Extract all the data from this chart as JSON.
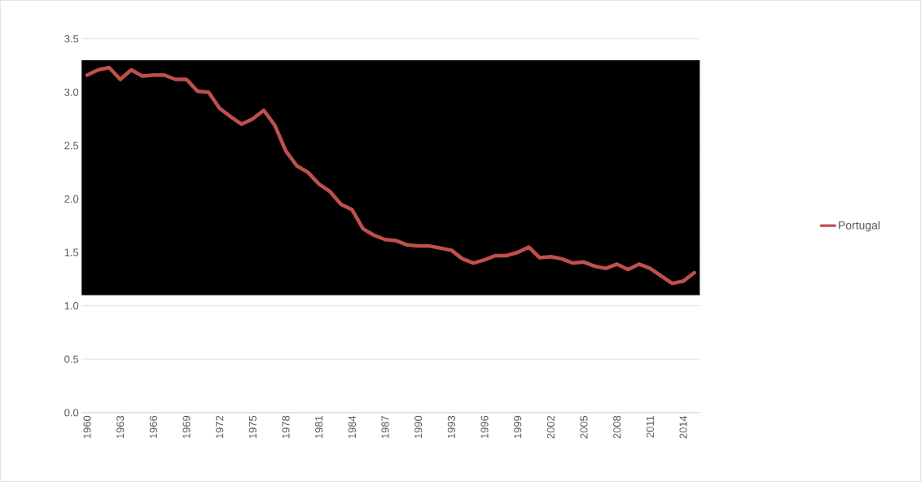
{
  "chart_data": {
    "type": "line",
    "categories": [
      "1960",
      null,
      null,
      "1963",
      null,
      null,
      "1966",
      null,
      null,
      "1969",
      null,
      null,
      "1972",
      null,
      null,
      "1975",
      null,
      null,
      "1978",
      null,
      null,
      "1981",
      null,
      null,
      "1984",
      null,
      null,
      "1987",
      null,
      null,
      "1990",
      null,
      null,
      "1993",
      null,
      null,
      "1996",
      null,
      null,
      "1999",
      null,
      null,
      "2002",
      null,
      null,
      "2005",
      null,
      null,
      "2008",
      null,
      null,
      "2011",
      null,
      null,
      "2014",
      null
    ],
    "series": [
      {
        "name": "Portugal",
        "color": "#c0504d",
        "values": [
          3.16,
          3.21,
          3.23,
          3.12,
          3.21,
          3.15,
          3.16,
          3.16,
          3.12,
          3.12,
          3.01,
          3.0,
          2.85,
          2.77,
          2.7,
          2.75,
          2.83,
          2.69,
          2.45,
          2.31,
          2.25,
          2.14,
          2.07,
          1.95,
          1.9,
          1.72,
          1.66,
          1.62,
          1.61,
          1.57,
          1.56,
          1.56,
          1.54,
          1.52,
          1.44,
          1.4,
          1.43,
          1.47,
          1.47,
          1.5,
          1.55,
          1.45,
          1.46,
          1.44,
          1.4,
          1.41,
          1.37,
          1.35,
          1.39,
          1.34,
          1.39,
          1.35,
          1.28,
          1.21,
          1.23,
          1.31
        ]
      }
    ],
    "ylim": [
      0,
      3.5
    ],
    "yticks": [
      {
        "value": 0,
        "label": "0.0"
      },
      {
        "value": 0.5,
        "label": "0.5"
      },
      {
        "value": 1,
        "label": "1.0"
      },
      {
        "value": 1.5,
        "label": "1.5"
      },
      {
        "value": 2,
        "label": "2.0"
      },
      {
        "value": 2.5,
        "label": "2.5"
      },
      {
        "value": 3,
        "label": "3.0"
      },
      {
        "value": 3.5,
        "label": "3.5"
      }
    ],
    "bands": [
      {
        "axis": "y",
        "from": 1.1,
        "to": 3.3,
        "color": "#000000"
      }
    ],
    "grid": "y",
    "legend": "right",
    "marker": "none",
    "line_style": "solid"
  }
}
